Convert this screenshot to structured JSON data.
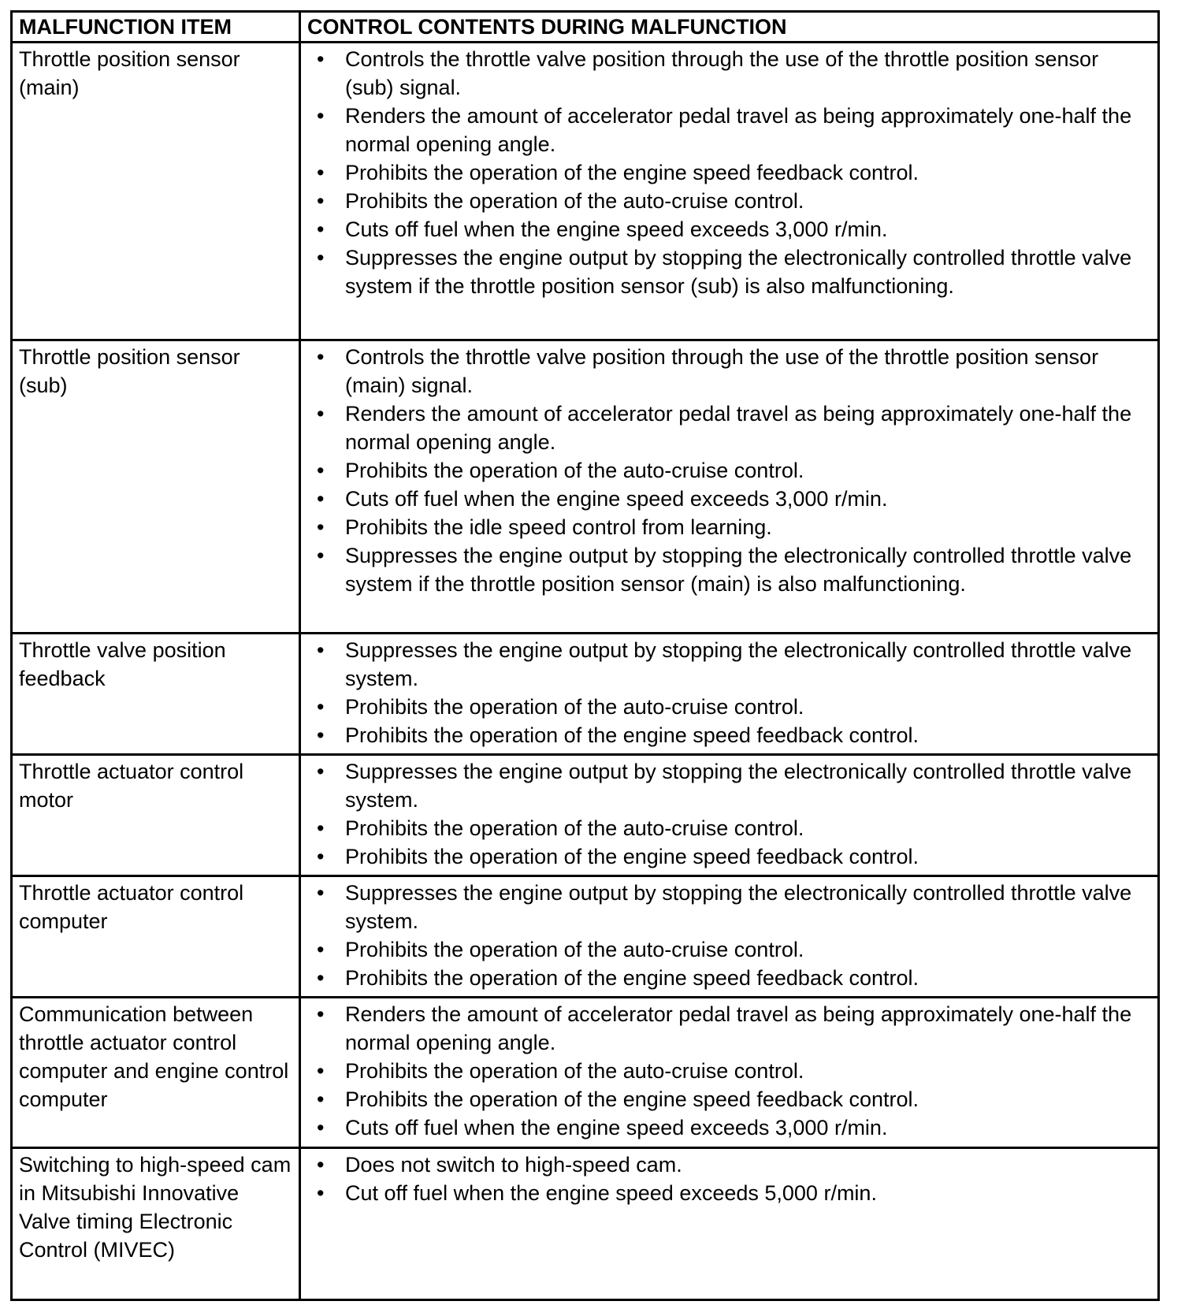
{
  "table": {
    "headers": [
      "MALFUNCTION ITEM",
      "CONTROL CONTENTS DURING MALFUNCTION"
    ],
    "rows": [
      {
        "item": "Throttle position sensor (main)",
        "controls": [
          "Controls the throttle valve position through the use of the throttle position sensor (sub) signal.",
          "Renders the amount of accelerator pedal travel as being approximately one-half the normal opening angle.",
          "Prohibits the operation of the engine speed feedback control.",
          "Prohibits the operation of the auto-cruise control.",
          "Cuts off fuel when the engine speed exceeds 3,000 r/min.",
          "Suppresses the engine output by stopping the electronically controlled throttle valve system if the throttle position sensor (sub) is also malfunctioning."
        ]
      },
      {
        "item": "Throttle position sensor (sub)",
        "controls": [
          "Controls the throttle valve position through the use of the throttle position sensor (main) signal.",
          "Renders the amount of accelerator pedal travel as being approximately one-half the normal opening angle.",
          "Prohibits the operation of the auto-cruise control.",
          "Cuts off fuel when the engine speed exceeds 3,000 r/min.",
          "Prohibits the idle speed control from learning.",
          "Suppresses the engine output by stopping the electronically controlled throttle valve system if the throttle position sensor (main) is also malfunctioning."
        ]
      },
      {
        "item": "Throttle valve position feedback",
        "controls": [
          "Suppresses the engine output by stopping the electronically controlled throttle valve system.",
          "Prohibits the operation of the auto-cruise control.",
          "Prohibits the operation of the engine speed feedback control."
        ]
      },
      {
        "item": "Throttle actuator control motor",
        "controls": [
          "Suppresses the engine output by stopping the electronically controlled throttle valve system.",
          "Prohibits the operation of the auto-cruise control.",
          "Prohibits the operation of the engine speed feedback control."
        ]
      },
      {
        "item": "Throttle actuator control computer",
        "controls": [
          "Suppresses the engine output by stopping the electronically controlled throttle valve system.",
          "Prohibits the operation of the auto-cruise control.",
          "Prohibits the operation of the engine speed feedback control."
        ]
      },
      {
        "item": "Communication between throttle actuator control computer and engine control computer",
        "controls": [
          "Renders the amount of accelerator pedal travel as being approximately one-half the normal opening angle.",
          "Prohibits the operation of the auto-cruise control.",
          "Prohibits the operation of the engine speed feedback control.",
          "Cuts off fuel when the engine speed exceeds 3,000 r/min."
        ]
      },
      {
        "item": "Switching to high-speed cam in Mitsubishi Innovative Valve timing Electronic Control (MIVEC)",
        "controls": [
          "Does not switch to high-speed cam.",
          "Cut off fuel when the engine speed exceeds 5,000 r/min."
        ]
      }
    ]
  }
}
